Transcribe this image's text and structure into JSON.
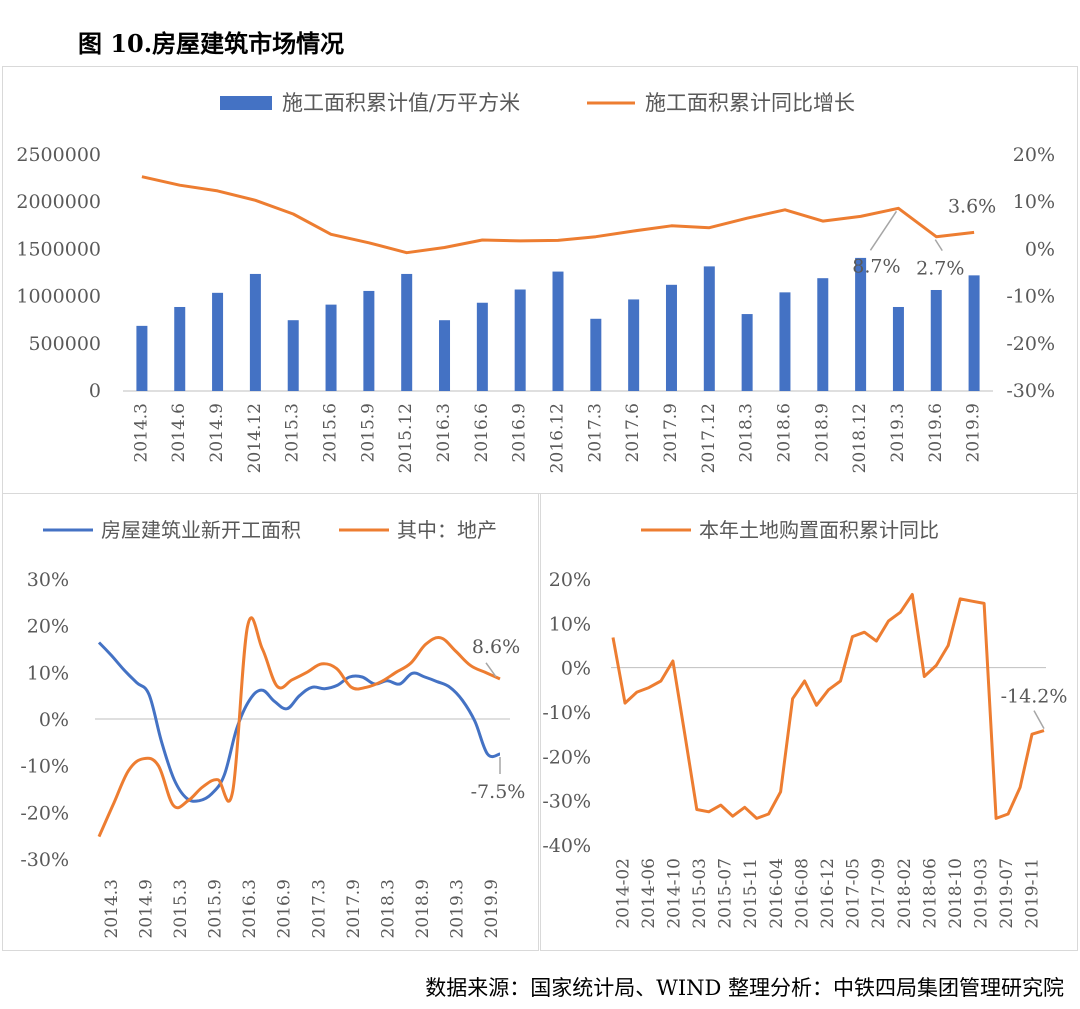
{
  "figure_title": "图 10.房屋建筑市场情况",
  "source": "数据来源：国家统计局、WIND   整理分析：中铁四局集团管理研究院",
  "chart_data": [
    {
      "type": "bar+line",
      "legend": [
        "施工面积累计值/万平方米",
        "施工面积累计同比增长"
      ],
      "categories": [
        "2014.3",
        "2014.6",
        "2014.9",
        "2014.12",
        "2015.3",
        "2015.6",
        "2015.9",
        "2015.12",
        "2016.3",
        "2016.6",
        "2016.9",
        "2016.12",
        "2017.3",
        "2017.6",
        "2017.9",
        "2017.12",
        "2018.3",
        "2018.6",
        "2018.9",
        "2018.12",
        "2019.3",
        "2019.6",
        "2019.9"
      ],
      "series": [
        {
          "name": "施工面积累计值/万平方米",
          "axis": "left",
          "color": "#4472c4",
          "values": [
            690000,
            890000,
            1040000,
            1240000,
            750000,
            915000,
            1060000,
            1240000,
            750000,
            935000,
            1075000,
            1265000,
            765000,
            970000,
            1125000,
            1320000,
            815000,
            1045000,
            1195000,
            1410000,
            890000,
            1070000,
            1225000
          ]
        },
        {
          "name": "施工面积累计同比增长",
          "axis": "right",
          "color": "#ed7d31",
          "values": [
            15.4,
            13.6,
            12.4,
            10.4,
            7.5,
            3.2,
            1.4,
            -0.7,
            0.4,
            2.0,
            1.8,
            1.9,
            2.7,
            3.9,
            5.0,
            4.6,
            6.6,
            8.4,
            6.0,
            7.0,
            8.7,
            2.7,
            3.6
          ]
        }
      ],
      "annotations": [
        "8.7%",
        "2.7%",
        "3.6%"
      ],
      "y_left_ticks": [
        "2500000",
        "2000000",
        "1500000",
        "1000000",
        "500000",
        "0"
      ],
      "y_left": [
        0,
        2500000
      ],
      "y_right_ticks": [
        "20%",
        "10%",
        "0%",
        "-10%",
        "-20%",
        "-30%"
      ],
      "y_right": [
        -30,
        20
      ]
    },
    {
      "type": "line",
      "legend": [
        "房屋建筑业新开工面积",
        "其中：地产"
      ],
      "x_ticks": [
        "2014.3",
        "2014.9",
        "2015.3",
        "2015.9",
        "2016.3",
        "2016.9",
        "2017.3",
        "2017.9",
        "2018.3",
        "2018.9",
        "2019.3",
        "2019.9"
      ],
      "series": [
        {
          "name": "房屋建筑业新开工面积",
          "color": "#4472c4",
          "values": [
            16.4,
            13.6,
            10.5,
            7.8,
            5.2,
            -5,
            -13,
            -17,
            -17.5,
            -16,
            -12,
            -2,
            4,
            6.2,
            3.8,
            2.2,
            5,
            6.8,
            6.5,
            7.2,
            9,
            9,
            7.5,
            8.2,
            7.5,
            9.8,
            9,
            8,
            6.8,
            4,
            -0.5,
            -7.5,
            -7.5
          ]
        },
        {
          "name": "其中：地产",
          "color": "#ed7d31",
          "values": [
            -25.2,
            -18,
            -11,
            -8.5,
            -10,
            -18.5,
            -17.5,
            -14.5,
            -13,
            -15.5,
            19.8,
            15,
            7,
            8.4,
            10,
            11.8,
            10.8,
            6.8,
            6.8,
            8,
            10,
            12,
            16,
            17.4,
            14.6,
            11.5,
            10,
            8.6
          ]
        }
      ],
      "annotations": [
        "8.6%",
        "-7.5%"
      ],
      "y_ticks": [
        "30%",
        "20%",
        "10%",
        "0%",
        "-10%",
        "-20%",
        "-30%"
      ],
      "y_range": [
        -30,
        30
      ]
    },
    {
      "type": "line",
      "legend": [
        "本年土地购置面积累计同比"
      ],
      "x_ticks": [
        "2014-02",
        "2014-06",
        "2014-10",
        "2015-03",
        "2015-07",
        "2015-11",
        "2016-04",
        "2016-08",
        "2016-12",
        "2017-05",
        "2017-09",
        "2018-02",
        "2018-06",
        "2018-10",
        "2019-03",
        "2019-07",
        "2019-11"
      ],
      "series": [
        {
          "name": "本年土地购置面积累计同比",
          "color": "#ed7d31",
          "values": [
            6.8,
            -8,
            -5.5,
            -4.5,
            -3,
            1.5,
            -15,
            -32,
            -32.5,
            -31,
            -33.5,
            -31.5,
            -34,
            -33,
            -28,
            -7,
            -3,
            -8.5,
            -5,
            -3,
            7,
            8,
            6,
            10.5,
            12.5,
            16.5,
            -2,
            0.5,
            5,
            15.5,
            15,
            14.5,
            -34,
            -33,
            -27,
            -15,
            -14.2
          ]
        }
      ],
      "annotations": [
        "-14.2%"
      ],
      "y_ticks": [
        "20%",
        "10%",
        "0%",
        "-10%",
        "-20%",
        "-30%",
        "-40%"
      ],
      "y_range": [
        -40,
        20
      ]
    }
  ]
}
